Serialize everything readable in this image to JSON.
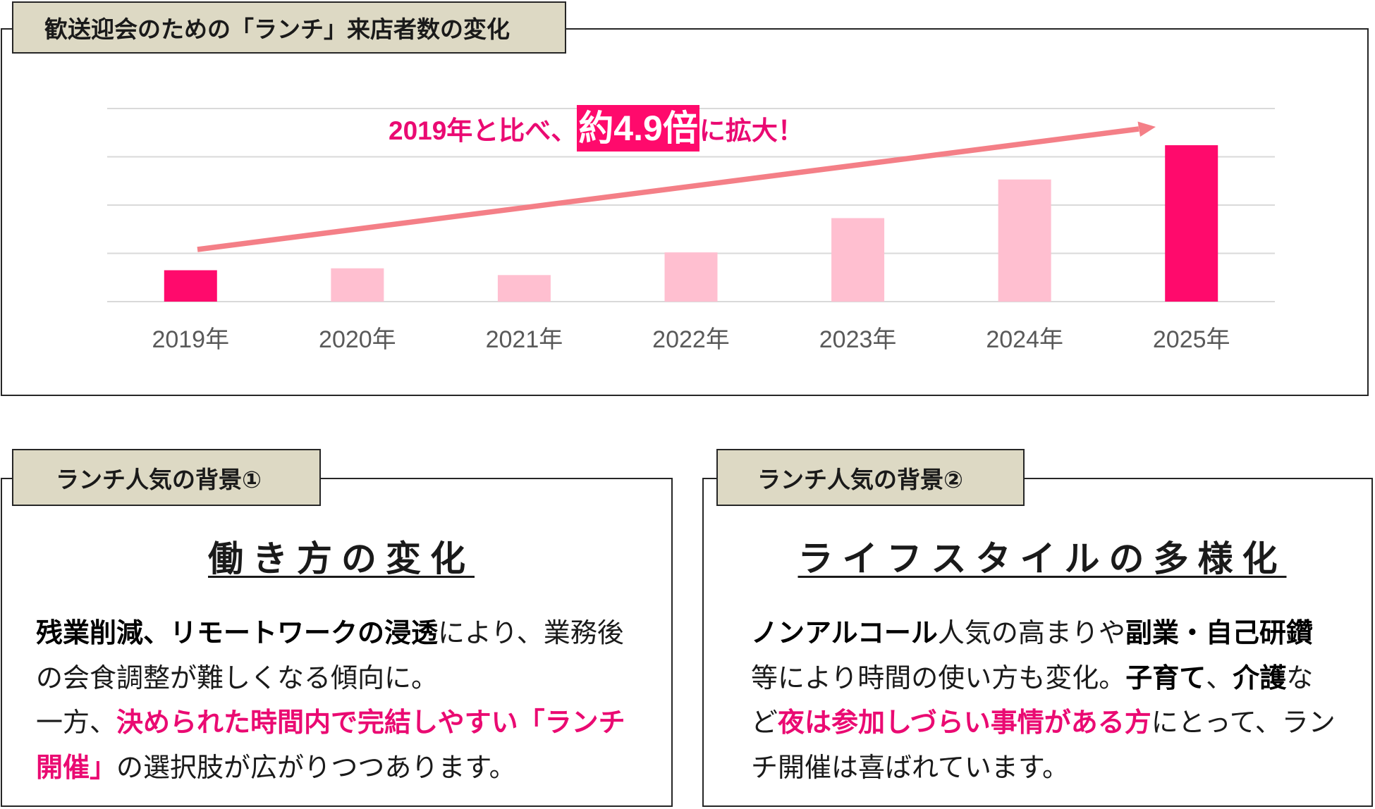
{
  "colors": {
    "accent": "#FF0A6C",
    "accent_text": "#EA0A72",
    "bar_light": "#FFBFD0",
    "arrow": "#F47F87",
    "tab_bg": "#DDD9C4",
    "grid": "#D9D9D9",
    "tick": "#595959"
  },
  "chart_data": {
    "type": "bar",
    "title": "歓送迎会のための「ランチ」来店者数の変化",
    "categories": [
      "2019年",
      "2020年",
      "2021年",
      "2022年",
      "2023年",
      "2024年",
      "2025年"
    ],
    "values": [
      0.65,
      0.69,
      0.55,
      1.02,
      1.73,
      2.53,
      3.24
    ],
    "ylim": [
      0,
      4
    ],
    "ygrid_step": 1,
    "grid": true,
    "highlight_indices": [
      0,
      6
    ],
    "annotation": {
      "prefix": "2019年と比べ、",
      "highlight": "約4.9倍",
      "suffix": "に拡大！"
    }
  },
  "backgrounds": [
    {
      "tab": "ランチ人気の背景①",
      "heading": "働き方の変化",
      "lines": [
        [
          "残業削減、リモートワークの浸透",
          "により、業務後"
        ],
        [
          "の会食調整が難しくなる傾向に。"
        ],
        [
          "一方、",
          "決められた時間内で完結しやすい「ランチ"
        ],
        [
          "開催」",
          "の選択肢が広がりつつあります。"
        ]
      ]
    },
    {
      "tab": "ランチ人気の背景②",
      "heading": "ライフスタイルの多様化",
      "lines": [
        [
          "ノンアルコール",
          "人気の高まりや",
          "副業・自己研鑽"
        ],
        [
          "等により時間の使い方も変化。",
          "子育て",
          "、",
          "介護",
          "な"
        ],
        [
          "ど",
          "夜は参加しづらい事情がある方",
          "にとって、ラン"
        ],
        [
          "チ開催は喜ばれています。"
        ]
      ]
    }
  ]
}
